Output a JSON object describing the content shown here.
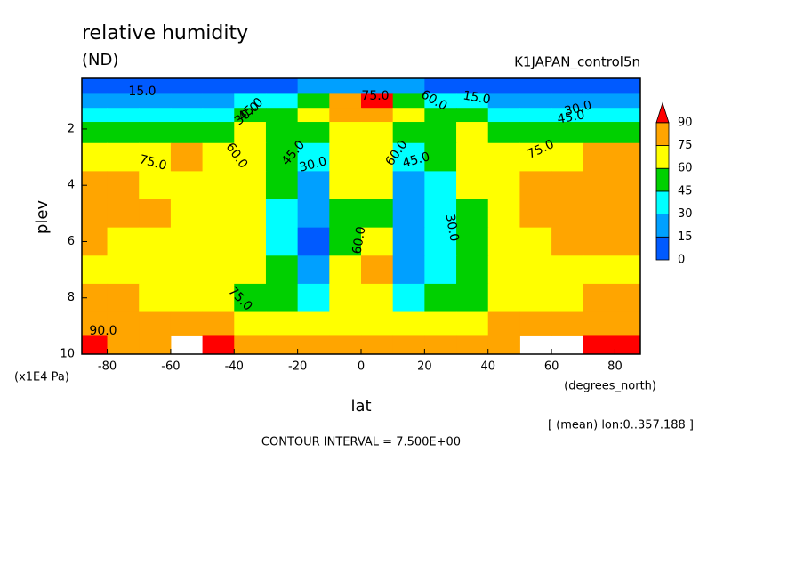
{
  "chart_data": {
    "type": "contour",
    "title": "relative humidity",
    "subtitle": "(ND)",
    "dataset": "K1JAPAN_control5n",
    "x_label": "lat",
    "x_units": "(degrees_north)",
    "y_label": "plev",
    "y_units": "(x1E4 Pa)",
    "note": "[ (mean) lon:0..357.188 ]",
    "footer": "CONTOUR INTERVAL = 7.500E+00",
    "xlim": [
      -88,
      88
    ],
    "xticks": [
      -80,
      -60,
      -40,
      -20,
      0,
      20,
      40,
      60,
      80
    ],
    "ylim": [
      10,
      0.2
    ],
    "yticks": [
      2,
      4,
      6,
      8,
      10
    ],
    "x": [
      -85,
      -75,
      -65,
      -55,
      -45,
      -35,
      -25,
      -15,
      -5,
      5,
      15,
      25,
      35,
      45,
      55,
      65,
      75,
      85
    ],
    "y": [
      0.5,
      1,
      1.5,
      2,
      3,
      4,
      5,
      6,
      7,
      8,
      9,
      9.7
    ],
    "z": [
      [
        10,
        10,
        10,
        10,
        10,
        10,
        12,
        15,
        20,
        20,
        15,
        12,
        10,
        10,
        10,
        10,
        10,
        10
      ],
      [
        22,
        22,
        22,
        24,
        26,
        30,
        35,
        45,
        78,
        92,
        50,
        35,
        30,
        26,
        24,
        22,
        22,
        22
      ],
      [
        40,
        40,
        40,
        40,
        42,
        45,
        50,
        60,
        80,
        80,
        60,
        50,
        45,
        42,
        40,
        40,
        40,
        40
      ],
      [
        55,
        55,
        55,
        55,
        57,
        60,
        55,
        55,
        70,
        70,
        55,
        55,
        60,
        57,
        55,
        55,
        55,
        55
      ],
      [
        72,
        72,
        72,
        76,
        70,
        65,
        50,
        40,
        65,
        62,
        40,
        50,
        65,
        70,
        72,
        72,
        78,
        78
      ],
      [
        78,
        78,
        70,
        72,
        70,
        62,
        45,
        25,
        60,
        60,
        25,
        40,
        60,
        70,
        75,
        78,
        80,
        78
      ],
      [
        80,
        80,
        76,
        72,
        70,
        62,
        40,
        15,
        58,
        58,
        18,
        30,
        55,
        70,
        76,
        80,
        80,
        80
      ],
      [
        78,
        72,
        70,
        70,
        68,
        62,
        40,
        12,
        55,
        62,
        20,
        30,
        55,
        68,
        72,
        76,
        78,
        78
      ],
      [
        70,
        68,
        66,
        68,
        66,
        62,
        45,
        25,
        60,
        76,
        25,
        40,
        55,
        68,
        70,
        70,
        70,
        70
      ],
      [
        78,
        76,
        72,
        70,
        66,
        58,
        45,
        40,
        65,
        66,
        40,
        45,
        58,
        65,
        70,
        73,
        77,
        80
      ],
      [
        86,
        84,
        82,
        80,
        78,
        72,
        68,
        68,
        72,
        74,
        70,
        68,
        72,
        78,
        82,
        84,
        86,
        88
      ],
      [
        92,
        88,
        86,
        null,
        90,
        80,
        78,
        76,
        76,
        78,
        76,
        78,
        82,
        88,
        null,
        null,
        90,
        92
      ]
    ],
    "colorbar_levels": [
      0,
      15,
      30,
      45,
      60,
      75,
      90
    ],
    "colors": [
      "#005aff",
      "#00a0ff",
      "#00ffff",
      "#00d000",
      "#ffff00",
      "#ffa500",
      "#ff0000"
    ],
    "contour_labels": [
      "15.0",
      "30.0",
      "45.0",
      "60.0",
      "75.0",
      "45.0",
      "30.0",
      "60.0",
      "75.0",
      "60.0",
      "45.0",
      "30.0",
      "75.0",
      "15.0",
      "30.0",
      "45.0",
      "75.0",
      "90.0",
      "60.0"
    ]
  }
}
